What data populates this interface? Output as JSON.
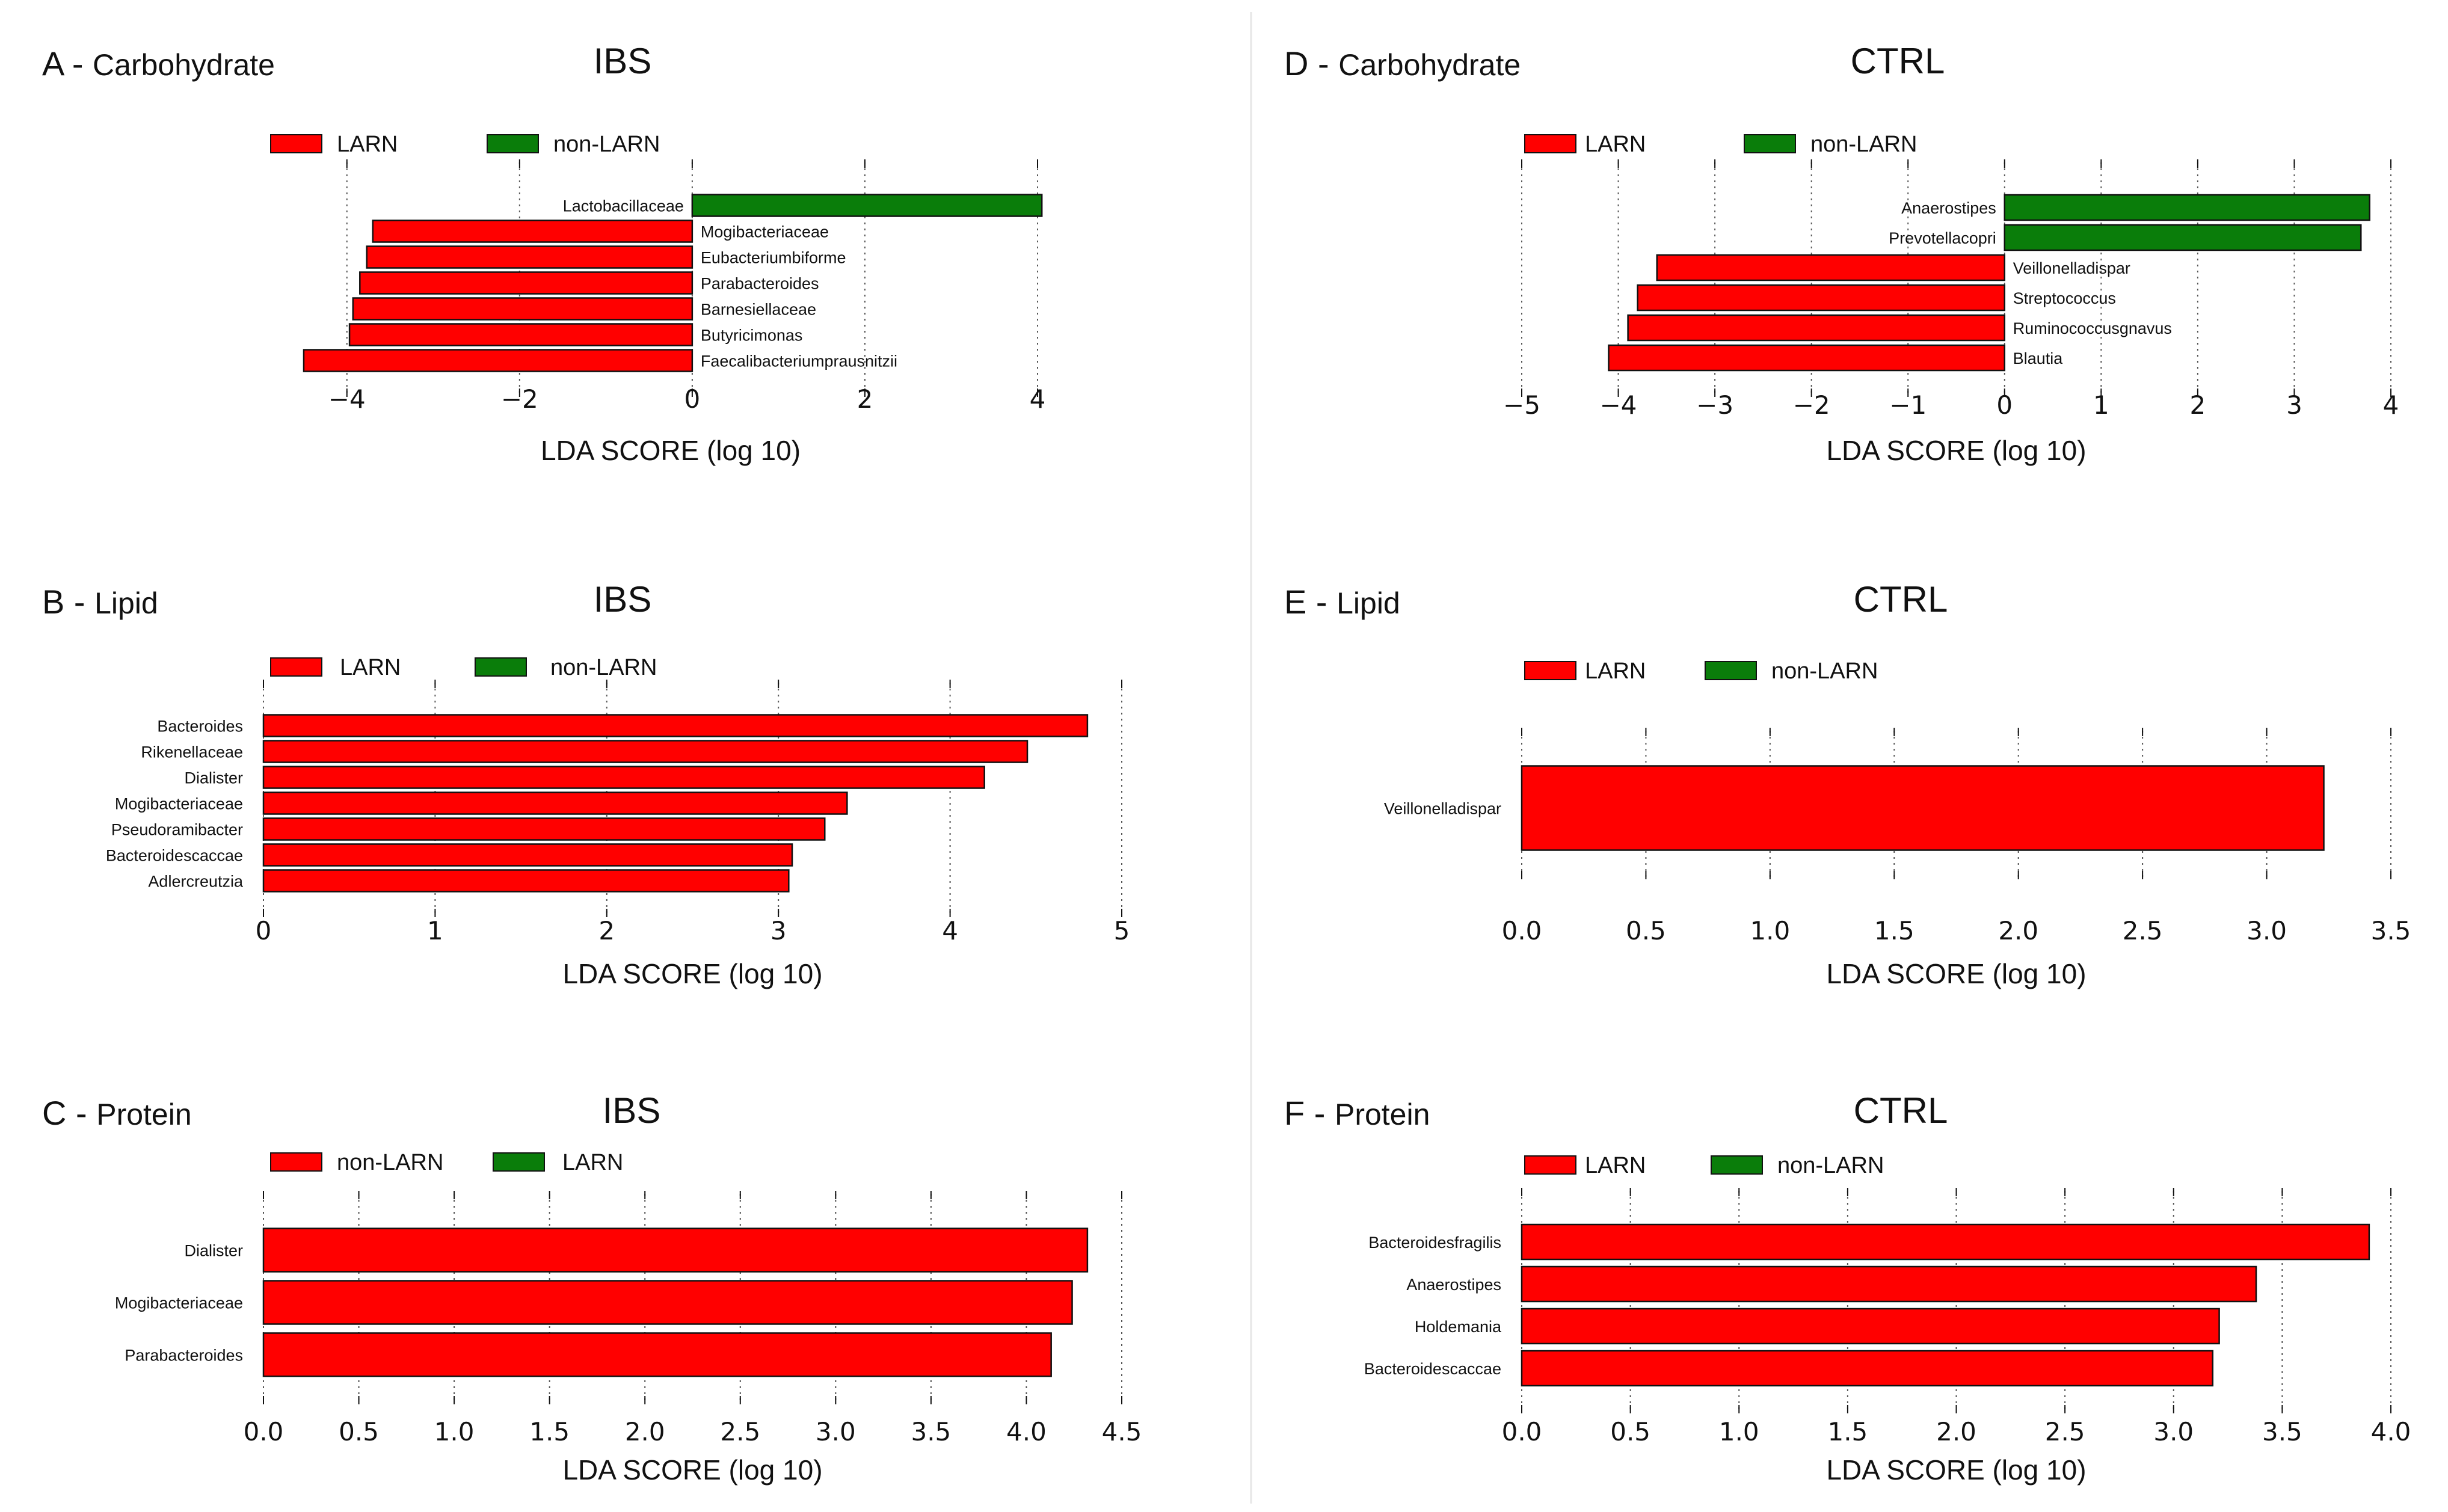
{
  "colors": {
    "red": "#ff0000",
    "green": "#0a7d0a",
    "edge": "#111111",
    "grid": "#555555",
    "divider": "#e6e6e6"
  },
  "chart_data": [
    {
      "id": "A",
      "letter": "A",
      "sub": "Carbohydrate",
      "title": "IBS",
      "type": "bar",
      "orientation": "horizontal",
      "label_style": "inline",
      "legend": [
        {
          "label": "LARN",
          "color": "#ff0000"
        },
        {
          "label": "non-LARN",
          "color": "#0a7d0a"
        }
      ],
      "xlabel": "LDA SCORE (log 10)",
      "xlim": [
        -4.5,
        4.0
      ],
      "ticks": [
        -4,
        -2,
        0,
        2,
        4
      ],
      "tick_labels": [
        "−4",
        "−2",
        "0",
        "2",
        "4"
      ],
      "bars": [
        {
          "label": "Lactobacillaceae",
          "value": 4.05,
          "group": "non-LARN"
        },
        {
          "label": "Mogibacteriaceae",
          "value": -3.7,
          "group": "LARN"
        },
        {
          "label": "Eubacteriumbiforme",
          "value": -3.77,
          "group": "LARN"
        },
        {
          "label": "Parabacteroides",
          "value": -3.85,
          "group": "LARN"
        },
        {
          "label": "Barnesiellaceae",
          "value": -3.93,
          "group": "LARN"
        },
        {
          "label": "Butyricimonas",
          "value": -3.97,
          "group": "LARN"
        },
        {
          "label": "Faecalibacteriumprausnitzii",
          "value": -4.5,
          "group": "LARN"
        }
      ]
    },
    {
      "id": "B",
      "letter": "B",
      "sub": "Lipid",
      "title": "IBS",
      "type": "bar",
      "orientation": "horizontal",
      "label_style": "left",
      "legend": [
        {
          "label": "LARN",
          "color": "#ff0000"
        },
        {
          "label": "non-LARN",
          "color": "#0a7d0a"
        }
      ],
      "xlabel": "LDA SCORE (log 10)",
      "xlim": [
        0,
        5
      ],
      "ticks": [
        0,
        1,
        2,
        3,
        4,
        5
      ],
      "tick_labels": [
        "0",
        "1",
        "2",
        "3",
        "4",
        "5"
      ],
      "bars": [
        {
          "label": "Bacteroides",
          "value": 4.8,
          "group": "LARN"
        },
        {
          "label": "Rikenellaceae",
          "value": 4.45,
          "group": "LARN"
        },
        {
          "label": "Dialister",
          "value": 4.2,
          "group": "LARN"
        },
        {
          "label": "Mogibacteriaceae",
          "value": 3.4,
          "group": "LARN"
        },
        {
          "label": "Pseudoramibacter",
          "value": 3.27,
          "group": "LARN"
        },
        {
          "label": "Bacteroidescaccae",
          "value": 3.08,
          "group": "LARN"
        },
        {
          "label": "Adlercreutzia",
          "value": 3.06,
          "group": "LARN"
        }
      ]
    },
    {
      "id": "C",
      "letter": "C",
      "sub": "Protein",
      "title": "IBS",
      "type": "bar",
      "orientation": "horizontal",
      "label_style": "left",
      "legend": [
        {
          "label": "non-LARN",
          "color": "#ff0000"
        },
        {
          "label": "LARN",
          "color": "#0a7d0a"
        }
      ],
      "xlabel": "LDA SCORE (log 10)",
      "xlim": [
        0,
        4.5
      ],
      "ticks": [
        0,
        0.5,
        1,
        1.5,
        2,
        2.5,
        3,
        3.5,
        4,
        4.5
      ],
      "tick_labels": [
        "0.0",
        "0.5",
        "1.0",
        "1.5",
        "2.0",
        "2.5",
        "3.0",
        "3.5",
        "4.0",
        "4.5"
      ],
      "bars": [
        {
          "label": "Dialister",
          "value": 4.32,
          "group": "non-LARN"
        },
        {
          "label": "Mogibacteriaceae",
          "value": 4.24,
          "group": "non-LARN"
        },
        {
          "label": "Parabacteroides",
          "value": 4.13,
          "group": "non-LARN"
        }
      ]
    },
    {
      "id": "D",
      "letter": "D",
      "sub": "Carbohydrate",
      "title": "CTRL",
      "type": "bar",
      "orientation": "horizontal",
      "label_style": "inline",
      "legend": [
        {
          "label": "LARN",
          "color": "#ff0000"
        },
        {
          "label": "non-LARN",
          "color": "#0a7d0a"
        }
      ],
      "xlabel": "LDA SCORE (log 10)",
      "xlim": [
        -5,
        4
      ],
      "ticks": [
        -5,
        -4,
        -3,
        -2,
        -1,
        0,
        1,
        2,
        3,
        4
      ],
      "tick_labels": [
        "−5",
        "−4",
        "−3",
        "−2",
        "−1",
        "0",
        "1",
        "2",
        "3",
        "4"
      ],
      "bars": [
        {
          "label": "Anaerostipes",
          "value": 3.78,
          "group": "non-LARN"
        },
        {
          "label": "Prevotellacopri",
          "value": 3.69,
          "group": "non-LARN"
        },
        {
          "label": "Veillonelladispar",
          "value": -3.6,
          "group": "LARN"
        },
        {
          "label": "Streptococcus",
          "value": -3.8,
          "group": "LARN"
        },
        {
          "label": "Ruminococcusgnavus",
          "value": -3.9,
          "group": "LARN"
        },
        {
          "label": "Blautia",
          "value": -4.1,
          "group": "LARN"
        }
      ]
    },
    {
      "id": "E",
      "letter": "E",
      "sub": "Lipid",
      "title": "CTRL",
      "type": "bar",
      "orientation": "horizontal",
      "label_style": "left",
      "legend": [
        {
          "label": "LARN",
          "color": "#ff0000"
        },
        {
          "label": "non-LARN",
          "color": "#0a7d0a"
        }
      ],
      "xlabel": "LDA SCORE (log 10)",
      "xlim": [
        0,
        3.5
      ],
      "ticks": [
        0,
        0.5,
        1,
        1.5,
        2,
        2.5,
        3,
        3.5
      ],
      "tick_labels": [
        "0.0",
        "0.5",
        "1.0",
        "1.5",
        "2.0",
        "2.5",
        "3.0",
        "3.5"
      ],
      "bars": [
        {
          "label": "Veillonelladispar",
          "value": 3.23,
          "group": "LARN"
        }
      ]
    },
    {
      "id": "F",
      "letter": "F",
      "sub": "Protein",
      "title": "CTRL",
      "type": "bar",
      "orientation": "horizontal",
      "label_style": "left",
      "legend": [
        {
          "label": "LARN",
          "color": "#ff0000"
        },
        {
          "label": "non-LARN",
          "color": "#0a7d0a"
        }
      ],
      "xlabel": "LDA SCORE (log 10)",
      "xlim": [
        0,
        4
      ],
      "ticks": [
        0,
        0.5,
        1,
        1.5,
        2,
        2.5,
        3,
        3.5,
        4
      ],
      "tick_labels": [
        "0.0",
        "0.5",
        "1.0",
        "1.5",
        "2.0",
        "2.5",
        "3.0",
        "3.5",
        "4.0"
      ],
      "bars": [
        {
          "label": "Bacteroidesfragilis",
          "value": 3.9,
          "group": "LARN"
        },
        {
          "label": "Anaerostipes",
          "value": 3.38,
          "group": "LARN"
        },
        {
          "label": "Holdemania",
          "value": 3.21,
          "group": "LARN"
        },
        {
          "label": "Bacteroidescaccae",
          "value": 3.18,
          "group": "LARN"
        }
      ]
    }
  ]
}
